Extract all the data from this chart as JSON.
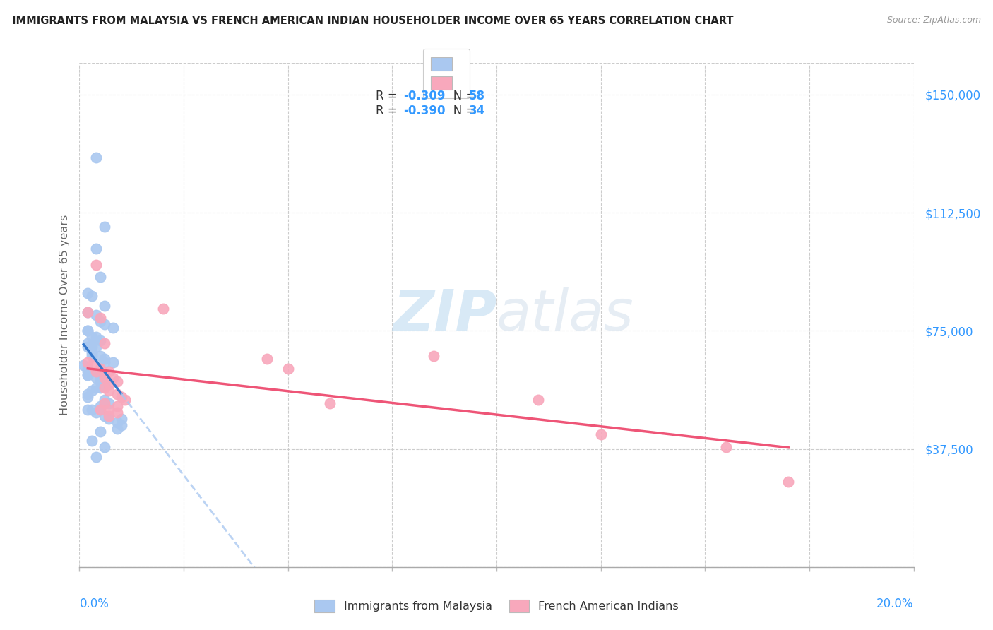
{
  "title": "IMMIGRANTS FROM MALAYSIA VS FRENCH AMERICAN INDIAN HOUSEHOLDER INCOME OVER 65 YEARS CORRELATION CHART",
  "source": "Source: ZipAtlas.com",
  "ylabel": "Householder Income Over 65 years",
  "xlim": [
    0.0,
    0.2
  ],
  "ylim": [
    0,
    160000
  ],
  "yticks": [
    0,
    37500,
    75000,
    112500,
    150000
  ],
  "ytick_labels": [
    "",
    "$37,500",
    "$75,000",
    "$112,500",
    "$150,000"
  ],
  "xticks": [
    0.0,
    0.025,
    0.05,
    0.075,
    0.1,
    0.125,
    0.15,
    0.175,
    0.2
  ],
  "R1": -0.309,
  "N1": 58,
  "R2": -0.39,
  "N2": 34,
  "blue_color": "#aac8f0",
  "pink_color": "#f8a8bc",
  "line_blue": "#3377cc",
  "line_pink": "#ee5577",
  "axis_color": "#3399ff",
  "watermark_zip": "ZIP",
  "watermark_atlas": "atlas",
  "malaysia_scatter_x": [
    0.004,
    0.006,
    0.004,
    0.005,
    0.002,
    0.003,
    0.006,
    0.002,
    0.004,
    0.005,
    0.006,
    0.008,
    0.002,
    0.002,
    0.003,
    0.004,
    0.005,
    0.002,
    0.003,
    0.002,
    0.004,
    0.003,
    0.003,
    0.005,
    0.006,
    0.006,
    0.008,
    0.001,
    0.002,
    0.002,
    0.003,
    0.002,
    0.002,
    0.004,
    0.005,
    0.005,
    0.006,
    0.004,
    0.005,
    0.003,
    0.002,
    0.002,
    0.006,
    0.007,
    0.005,
    0.002,
    0.003,
    0.004,
    0.006,
    0.007,
    0.01,
    0.009,
    0.01,
    0.009,
    0.005,
    0.003,
    0.006,
    0.004
  ],
  "malaysia_scatter_y": [
    130000,
    108000,
    101000,
    92000,
    87000,
    86000,
    83000,
    81000,
    80000,
    78000,
    77000,
    76000,
    75000,
    75000,
    73000,
    73000,
    72000,
    71000,
    70000,
    70000,
    70000,
    68000,
    67000,
    67000,
    66000,
    65000,
    65000,
    64000,
    63000,
    62000,
    62000,
    61000,
    61000,
    60000,
    60000,
    59000,
    58000,
    57000,
    57000,
    56000,
    55000,
    54000,
    53000,
    52000,
    51000,
    50000,
    50000,
    49000,
    48000,
    47000,
    47000,
    46000,
    45000,
    44000,
    43000,
    40000,
    38000,
    35000
  ],
  "french_scatter_x": [
    0.004,
    0.002,
    0.005,
    0.006,
    0.002,
    0.003,
    0.005,
    0.004,
    0.007,
    0.006,
    0.006,
    0.008,
    0.009,
    0.007,
    0.006,
    0.007,
    0.009,
    0.01,
    0.011,
    0.006,
    0.009,
    0.005,
    0.007,
    0.009,
    0.007,
    0.02,
    0.045,
    0.05,
    0.06,
    0.085,
    0.11,
    0.125,
    0.155,
    0.17
  ],
  "french_scatter_y": [
    96000,
    81000,
    79000,
    71000,
    65000,
    64000,
    63000,
    62000,
    62000,
    61000,
    60000,
    60000,
    59000,
    58000,
    57000,
    56000,
    55000,
    54000,
    53000,
    52000,
    51000,
    50000,
    50000,
    49000,
    48000,
    82000,
    66000,
    63000,
    52000,
    67000,
    53000,
    42000,
    38000,
    27000
  ]
}
